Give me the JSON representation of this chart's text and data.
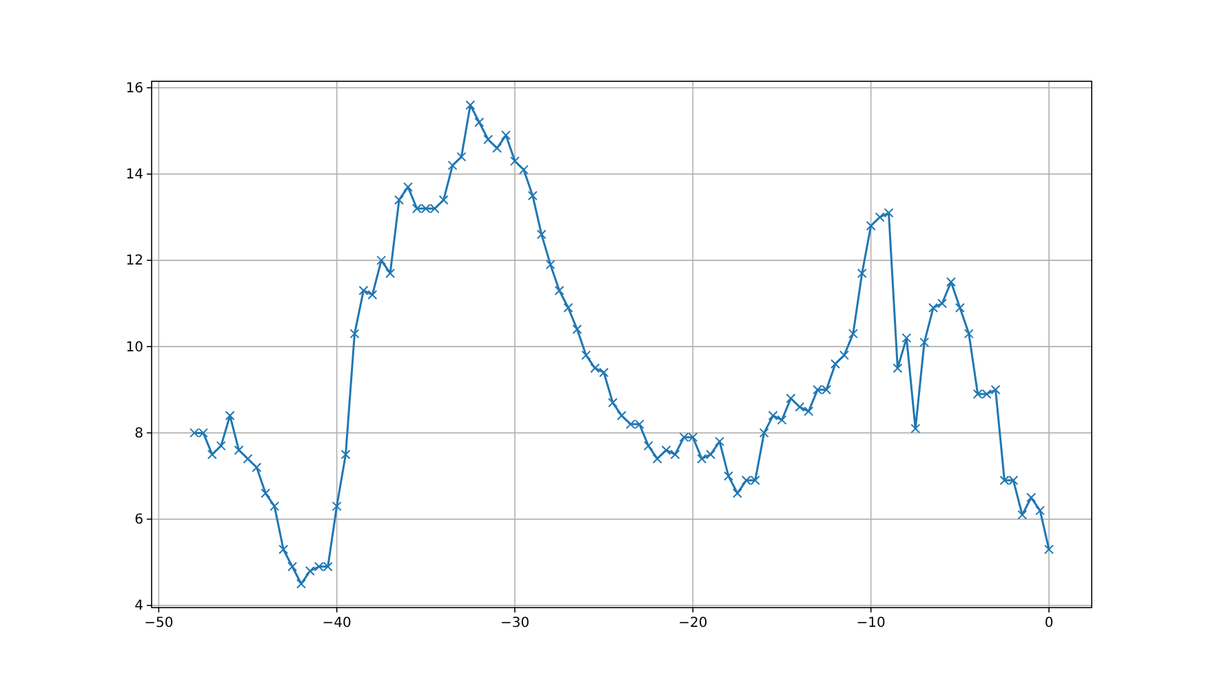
{
  "chart_data": {
    "type": "line",
    "marker": "cross",
    "line_style": "solid",
    "grid": true,
    "xlim": [
      -50.4,
      2.4
    ],
    "ylim": [
      3.95,
      16.15
    ],
    "xticks": [
      -50,
      -40,
      -30,
      -20,
      -10,
      0
    ],
    "yticks": [
      4,
      6,
      8,
      10,
      12,
      14,
      16
    ],
    "x": [
      -48,
      -47.5,
      -47,
      -46.5,
      -46,
      -45.5,
      -45,
      -44.5,
      -44,
      -43.5,
      -43,
      -42.5,
      -42,
      -41.5,
      -41,
      -40.5,
      -40,
      -39.5,
      -39,
      -38.5,
      -38,
      -37.5,
      -37,
      -36.5,
      -36,
      -35.5,
      -35,
      -34.5,
      -34,
      -33.5,
      -33,
      -32.5,
      -32,
      -31.5,
      -31,
      -30.5,
      -30,
      -29.5,
      -29,
      -28.5,
      -28,
      -27.5,
      -27,
      -26.5,
      -26,
      -25.5,
      -25,
      -24.5,
      -24,
      -23.5,
      -23,
      -22.5,
      -22,
      -21.5,
      -21,
      -20.5,
      -20,
      -19.5,
      -19,
      -18.5,
      -18,
      -17.5,
      -17,
      -16.5,
      -16,
      -15.5,
      -15,
      -14.5,
      -14,
      -13.5,
      -13,
      -12.5,
      -12,
      -11.5,
      -11,
      -10.5,
      -10,
      -9.5,
      -9,
      -8.5,
      -8,
      -7.5,
      -7,
      -6.5,
      -6,
      -5.5,
      -5,
      -4.5,
      -4,
      -3.5,
      -3,
      -2.5,
      -2,
      -1.5,
      -1,
      -0.5,
      0
    ],
    "series": [
      {
        "color": "#1f77b4",
        "values": [
          8.0,
          8.0,
          7.5,
          7.7,
          8.4,
          7.6,
          7.4,
          7.2,
          6.6,
          6.3,
          5.3,
          4.9,
          4.5,
          4.8,
          4.9,
          4.9,
          6.3,
          7.5,
          10.3,
          11.3,
          11.2,
          12.0,
          11.7,
          13.4,
          13.7,
          13.2,
          13.2,
          13.2,
          13.4,
          14.2,
          14.4,
          15.6,
          15.2,
          14.8,
          14.6,
          14.9,
          14.3,
          14.1,
          13.5,
          12.6,
          11.9,
          11.3,
          10.9,
          10.4,
          9.8,
          9.5,
          9.4,
          8.7,
          8.4,
          8.2,
          8.2,
          7.7,
          7.4,
          7.6,
          7.5,
          7.9,
          7.9,
          7.4,
          7.5,
          7.8,
          7.0,
          6.6,
          6.9,
          6.9,
          8.0,
          8.4,
          8.3,
          8.8,
          8.6,
          8.5,
          9.0,
          9.0,
          9.6,
          9.8,
          10.3,
          11.7,
          12.8,
          13.0,
          13.1,
          9.5,
          10.2,
          8.1,
          10.1,
          10.9,
          11.0,
          11.5,
          10.9,
          10.3,
          8.9,
          8.9,
          9.0,
          6.9,
          6.9,
          6.1,
          6.5,
          6.2,
          5.3
        ]
      }
    ]
  }
}
